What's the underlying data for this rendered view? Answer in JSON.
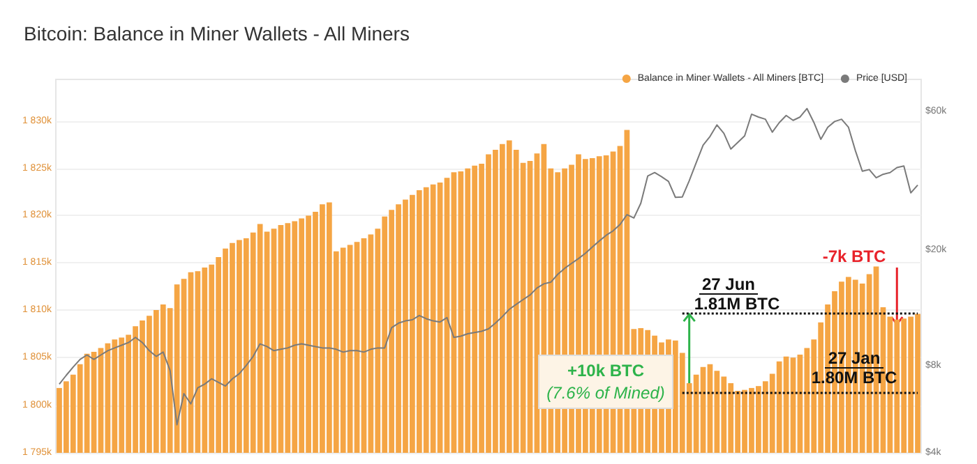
{
  "chart_data": {
    "type": "bar",
    "title": "Bitcoin: Balance in Miner Wallets - All Miners",
    "categories": [
      null,
      null,
      null,
      null,
      null,
      null,
      null,
      null,
      null,
      null,
      null,
      null,
      null,
      null,
      null,
      null,
      null,
      null,
      null,
      null,
      null,
      null,
      null,
      null,
      null,
      null,
      null,
      null,
      null,
      null,
      null,
      null,
      null,
      null,
      null,
      null,
      null,
      null,
      null,
      null,
      null,
      null,
      null,
      null,
      null,
      null,
      null,
      null,
      null,
      null,
      null,
      null,
      null,
      null,
      null,
      null,
      null,
      null,
      null,
      null,
      null,
      null,
      null,
      null,
      null,
      null,
      null,
      null,
      null,
      null,
      null,
      null,
      null,
      null,
      null,
      null,
      null,
      null,
      null,
      null,
      null,
      null,
      null,
      null,
      null,
      null,
      null,
      null,
      null,
      null,
      null,
      null,
      null,
      null,
      null,
      null,
      null,
      null,
      null,
      null,
      null,
      null,
      null,
      null,
      null,
      null,
      null,
      null,
      null,
      null,
      null,
      null,
      null,
      null,
      null,
      null,
      null,
      null,
      null,
      null,
      null,
      null,
      null,
      null,
      null
    ],
    "series": [
      {
        "name": "Balance in Miner Wallets - All Miners [BTC]",
        "color": "#f5a544",
        "values": [
          1801800,
          1802500,
          1803200,
          1804300,
          1805400,
          1805600,
          1806000,
          1806500,
          1806900,
          1807100,
          1807400,
          1808300,
          1808900,
          1809400,
          1810000,
          1810600,
          1810200,
          1812700,
          1813300,
          1814000,
          1814100,
          1814500,
          1814800,
          1815600,
          1816500,
          1817100,
          1817400,
          1817600,
          1818200,
          1819100,
          1818300,
          1818600,
          1819000,
          1819200,
          1819400,
          1819700,
          1820000,
          1820400,
          1821200,
          1821400,
          1816200,
          1816600,
          1816900,
          1817200,
          1817600,
          1818000,
          1818600,
          1819900,
          1820600,
          1821200,
          1821700,
          1822200,
          1822700,
          1823000,
          1823300,
          1823500,
          1824000,
          1824600,
          1824700,
          1825000,
          1825300,
          1825500,
          1826500,
          1827000,
          1827600,
          1828000,
          1827000,
          1825600,
          1825800,
          1826600,
          1827600,
          1825000,
          1824600,
          1825000,
          1825400,
          1826500,
          1826000,
          1826100,
          1826300,
          1826400,
          1826800,
          1827400,
          1829100,
          1808000,
          1808100,
          1807900,
          1807300,
          1806600,
          1806900,
          1806800,
          1805500,
          1802300,
          1803200,
          1804000,
          1804300,
          1803600,
          1803000,
          1802300,
          1801500,
          1801600,
          1801800,
          1802000,
          1802500,
          1803300,
          1804600,
          1805100,
          1805000,
          1805300,
          1806000,
          1806900,
          1808700,
          1810600,
          1812000,
          1813000,
          1813500,
          1813200,
          1812800,
          1813800,
          1814600,
          1810300,
          1809300,
          1809000,
          1809100,
          1809300,
          1809600
        ]
      },
      {
        "name": "Price [USD]",
        "type": "line",
        "axis": "y2",
        "color": "#7a7a7a",
        "values": [
          6900,
          7400,
          7900,
          8400,
          8700,
          8400,
          8700,
          9000,
          9200,
          9400,
          9600,
          10000,
          9600,
          9000,
          8600,
          8900,
          7700,
          5000,
          6400,
          5900,
          6700,
          6900,
          7200,
          7000,
          6800,
          7200,
          7500,
          8000,
          8600,
          9500,
          9300,
          9000,
          9100,
          9200,
          9400,
          9500,
          9400,
          9300,
          9200,
          9200,
          9100,
          8900,
          9000,
          9000,
          8900,
          9100,
          9200,
          9200,
          10800,
          11200,
          11400,
          11500,
          11900,
          11600,
          11400,
          11300,
          11700,
          10000,
          10100,
          10300,
          10400,
          10500,
          10700,
          11200,
          11800,
          12500,
          13000,
          13500,
          14000,
          14800,
          15300,
          15500,
          16500,
          17300,
          18000,
          18700,
          19500,
          20500,
          21500,
          22500,
          23300,
          24500,
          26500,
          25800,
          29000,
          36000,
          37000,
          35800,
          34500,
          30400,
          30500,
          34700,
          40000,
          46000,
          49300,
          54000,
          50500,
          44600,
          47000,
          49500,
          58800,
          57500,
          56500,
          51000,
          55000,
          58200,
          56000,
          57500,
          61500,
          55100,
          48200,
          53000,
          55500,
          56500,
          53000,
          44000,
          37400,
          37900,
          35500,
          36500,
          37000,
          38500,
          39000,
          31500,
          33500
        ]
      }
    ],
    "ylim": [
      1795000,
      1834500
    ],
    "yticks": [
      {
        "value": 1795000,
        "label": "1 795k"
      },
      {
        "value": 1800000,
        "label": "1 800k"
      },
      {
        "value": 1805000,
        "label": "1 805k"
      },
      {
        "value": 1810000,
        "label": "1 810k"
      },
      {
        "value": 1815000,
        "label": "1 815k"
      },
      {
        "value": 1820000,
        "label": "1 820k"
      },
      {
        "value": 1825000,
        "label": "1 825k"
      },
      {
        "value": 1830000,
        "label": "1 830k"
      }
    ],
    "y2lim": [
      4000,
      77500
    ],
    "y2ticks": [
      {
        "value": 4000,
        "label": "$4k"
      },
      {
        "value": 8000,
        "label": "$8k"
      },
      {
        "value": 20000,
        "label": "$20k"
      },
      {
        "value": 60000,
        "label": "$60k"
      }
    ],
    "log": "y2",
    "grid": "y",
    "legend": "top right",
    "marker": "none",
    "ref_lines": [
      {
        "axis": "y",
        "value": 1809700,
        "color": "#111111",
        "line_style": "dotted"
      },
      {
        "axis": "y",
        "value": 1801300,
        "color": "#111111",
        "line_style": "dotted"
      }
    ],
    "annotations": [
      "27 Jun",
      "1.81M BTC",
      "27 Jan",
      "1.80M BTC",
      "+10k BTC",
      "(7.6% of Mined)",
      "-7k BTC"
    ]
  }
}
